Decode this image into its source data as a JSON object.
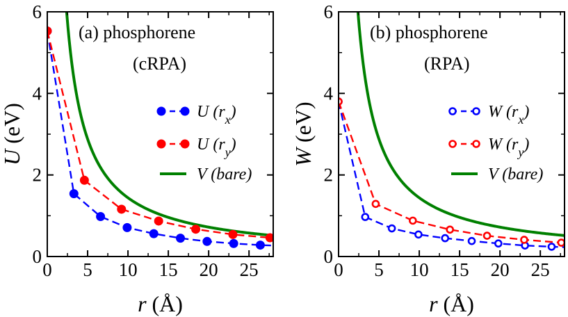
{
  "chart_data": [
    {
      "type": "scatter",
      "title": "(a) phosphorene",
      "subtitle": "(cRPA)",
      "ylabel_sym": "U",
      "ylabel_unit": "(eV)",
      "xlabel_sym": "r",
      "xlabel_unit": "(Å)",
      "xlim": [
        0,
        28
      ],
      "ylim": [
        0,
        6
      ],
      "xticks": [
        0,
        5,
        10,
        15,
        20,
        25
      ],
      "yticks": [
        0,
        2,
        4,
        6
      ],
      "marker_style": "filled",
      "series": [
        {
          "name": "U (rx)",
          "legend_sym": "U",
          "legend_sub": "x",
          "color": "#0000ff",
          "style": "dashed-markers",
          "x": [
            0,
            3.3,
            6.6,
            9.9,
            13.2,
            16.5,
            19.8,
            23.1,
            26.4,
            28
          ],
          "y": [
            5.53,
            1.54,
            0.98,
            0.71,
            0.56,
            0.45,
            0.37,
            0.32,
            0.28,
            0.27
          ],
          "marker_count": 9
        },
        {
          "name": "U (ry)",
          "legend_sym": "U",
          "legend_sub": "y",
          "color": "#ff0000",
          "style": "dashed-markers",
          "x": [
            0,
            4.6,
            9.2,
            13.8,
            18.4,
            23.0,
            27.6,
            28
          ],
          "y": [
            5.53,
            1.87,
            1.16,
            0.87,
            0.67,
            0.54,
            0.46,
            0.45
          ],
          "marker_count": 7
        },
        {
          "name": "V (bare)",
          "legend_text": "V (bare)",
          "color": "#008000",
          "style": "solid",
          "model": "14.4/r",
          "x_start": 2.4,
          "x_end": 28
        }
      ]
    },
    {
      "type": "scatter",
      "title": "(b) phosphorene",
      "subtitle": "(RPA)",
      "ylabel_sym": "W",
      "ylabel_unit": "(eV)",
      "xlabel_sym": "r",
      "xlabel_unit": "(Å)",
      "xlim": [
        0,
        28
      ],
      "ylim": [
        0,
        6
      ],
      "xticks": [
        0,
        5,
        10,
        15,
        20,
        25
      ],
      "yticks": [
        0,
        2,
        4,
        6
      ],
      "marker_style": "open",
      "series": [
        {
          "name": "W (rx)",
          "legend_sym": "W",
          "legend_sub": "x",
          "color": "#0000ff",
          "style": "dashed-markers",
          "x": [
            0,
            3.3,
            6.6,
            9.9,
            13.2,
            16.5,
            19.8,
            23.1,
            26.4,
            28
          ],
          "y": [
            3.8,
            0.97,
            0.69,
            0.54,
            0.45,
            0.38,
            0.32,
            0.27,
            0.24,
            0.23
          ],
          "marker_count": 9
        },
        {
          "name": "W (ry)",
          "legend_sym": "W",
          "legend_sub": "y",
          "color": "#ff0000",
          "style": "dashed-markers",
          "x": [
            0,
            4.6,
            9.2,
            13.8,
            18.4,
            23.0,
            27.6,
            28
          ],
          "y": [
            3.8,
            1.29,
            0.88,
            0.66,
            0.51,
            0.41,
            0.34,
            0.33
          ],
          "marker_count": 7
        },
        {
          "name": "V (bare)",
          "legend_text": "V (bare)",
          "color": "#008000",
          "style": "solid",
          "model": "14.4/r",
          "x_start": 2.4,
          "x_end": 28
        }
      ]
    }
  ]
}
